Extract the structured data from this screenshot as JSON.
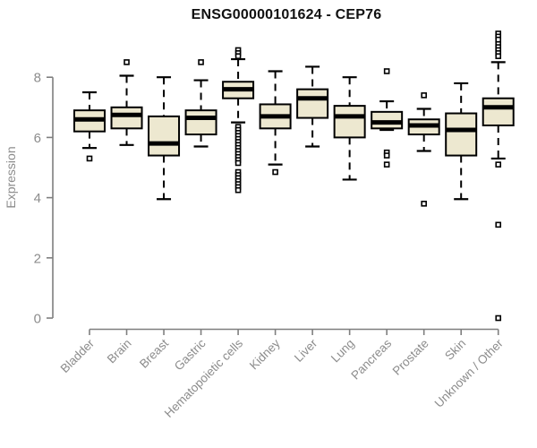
{
  "title": "ENSG00000101624 - CEP76",
  "colors": {
    "background": "#ffffff",
    "box_fill": "#EDE8D0",
    "box_border": "#000000",
    "median": "#000000",
    "whisker": "#000000",
    "outlier_stroke": "#000000",
    "outlier_fill": "#ffffff",
    "axis_line": "#7f7f7f",
    "axis_text": "#8c8c8c",
    "title_text": "#111111"
  },
  "chart_data": {
    "type": "boxplot",
    "title": "ENSG00000101624 - CEP76",
    "xlabel": "",
    "ylabel": "Expression",
    "yticks": [
      0,
      2,
      4,
      6,
      8
    ],
    "ylim": [
      0,
      9.5
    ],
    "grid": false,
    "categories": [
      "Bladder",
      "Brain",
      "Breast",
      "Gastric",
      "Hematopoietic cells",
      "Kidney",
      "Liver",
      "Lung",
      "Pancreas",
      "Prostate",
      "Skin",
      "Unknown / Other"
    ],
    "boxes": [
      {
        "label": "Bladder",
        "whisker_low": 5.65,
        "q1": 6.2,
        "median": 6.6,
        "q3": 6.9,
        "whisker_high": 7.5,
        "outliers": [
          5.3
        ]
      },
      {
        "label": "Brain",
        "whisker_low": 5.75,
        "q1": 6.3,
        "median": 6.75,
        "q3": 7.0,
        "whisker_high": 8.05,
        "outliers": [
          8.5
        ]
      },
      {
        "label": "Breast",
        "whisker_low": 3.95,
        "q1": 5.4,
        "median": 5.8,
        "q3": 6.7,
        "whisker_high": 8.0,
        "outliers": []
      },
      {
        "label": "Gastric",
        "whisker_low": 5.7,
        "q1": 6.1,
        "median": 6.65,
        "q3": 6.9,
        "whisker_high": 7.9,
        "outliers": [
          8.5
        ]
      },
      {
        "label": "Hematopoietic cells",
        "whisker_low": 6.5,
        "q1": 7.3,
        "median": 7.6,
        "q3": 7.85,
        "whisker_high": 8.6,
        "outliers": [
          8.9,
          8.8,
          8.7,
          6.35,
          6.25,
          6.15,
          6.05,
          5.95,
          5.85,
          5.75,
          5.65,
          5.55,
          5.45,
          5.35,
          5.25,
          5.15,
          4.85,
          4.75,
          4.65,
          4.55,
          4.45,
          4.35,
          4.25
        ]
      },
      {
        "label": "Kidney",
        "whisker_low": 5.1,
        "q1": 6.3,
        "median": 6.7,
        "q3": 7.1,
        "whisker_high": 8.2,
        "outliers": [
          4.85
        ]
      },
      {
        "label": "Liver",
        "whisker_low": 5.7,
        "q1": 6.65,
        "median": 7.3,
        "q3": 7.6,
        "whisker_high": 8.35,
        "outliers": []
      },
      {
        "label": "Lung",
        "whisker_low": 4.6,
        "q1": 6.0,
        "median": 6.7,
        "q3": 7.05,
        "whisker_high": 8.0,
        "outliers": []
      },
      {
        "label": "Pancreas",
        "whisker_low": 6.25,
        "q1": 6.3,
        "median": 6.5,
        "q3": 6.85,
        "whisker_high": 7.2,
        "outliers": [
          8.2,
          5.5,
          5.4,
          5.1
        ]
      },
      {
        "label": "Prostate",
        "whisker_low": 5.55,
        "q1": 6.1,
        "median": 6.4,
        "q3": 6.6,
        "whisker_high": 6.95,
        "outliers": [
          7.4,
          3.8
        ]
      },
      {
        "label": "Skin",
        "whisker_low": 3.95,
        "q1": 5.4,
        "median": 6.25,
        "q3": 6.8,
        "whisker_high": 7.8,
        "outliers": []
      },
      {
        "label": "Unknown / Other",
        "whisker_low": 5.3,
        "q1": 6.4,
        "median": 7.0,
        "q3": 7.3,
        "whisker_high": 8.5,
        "outliers": [
          9.45,
          9.35,
          9.25,
          9.1,
          9.0,
          8.9,
          8.8,
          8.7,
          5.1,
          3.1,
          0.0
        ]
      }
    ],
    "legend": null
  }
}
